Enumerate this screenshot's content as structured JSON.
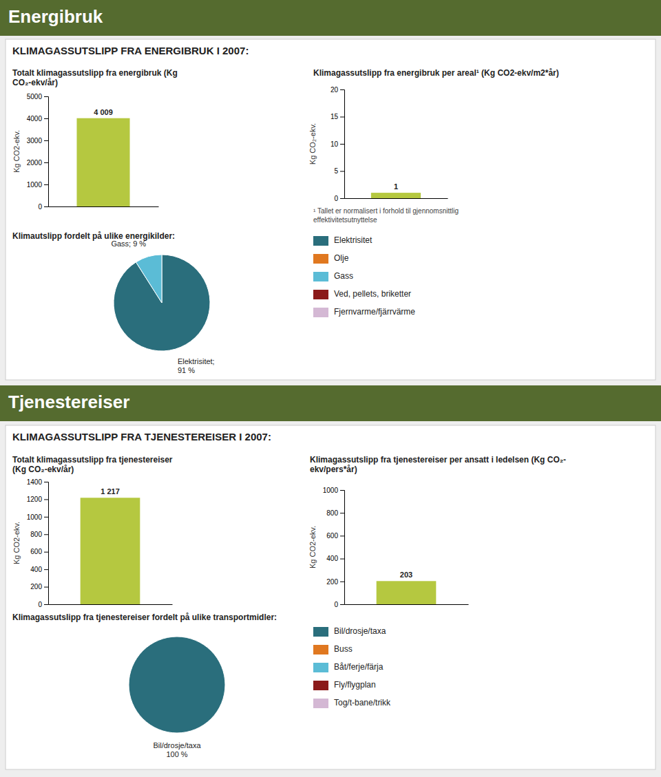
{
  "sections": [
    {
      "header": "Energibruk",
      "title": "KLIMAGASSUTSLIPP FRA ENERGIBRUK I 2007:"
    },
    {
      "header": "Tjenestereiser",
      "title": "KLIMAGASSUTSLIPP FRA TJENESTEREISER I 2007:"
    }
  ],
  "chart_data": [
    {
      "type": "bar",
      "title": "Totalt klimagassutslipp fra energibruk (Kg\nCO₂-ekv/år)",
      "categories": [
        null
      ],
      "values": [
        4009
      ],
      "value_labels": [
        "4 009"
      ],
      "data_labels": true,
      "color": "#b5c840",
      "ylim": [
        0,
        5000
      ],
      "yticks": [
        0,
        1000,
        2000,
        3000,
        4000,
        5000
      ],
      "y_label": "Kg CO2-ekv."
    },
    {
      "type": "bar",
      "title": "Klimagassutslipp fra energibruk per areal¹ (Kg CO2-ekv/m2*år)",
      "categories": [
        null
      ],
      "values": [
        1
      ],
      "data_labels": true,
      "color": "#b5c840",
      "ylim": [
        0,
        20
      ],
      "yticks": [
        0,
        5,
        10,
        15,
        20
      ],
      "y_label": "Kg CO₂-ekv.",
      "annotations": [
        "¹ Tallet er normalisert i forhold til gjennomsnittlig\neffektivitetsutnyttelse"
      ]
    },
    {
      "type": "pie",
      "title": "Klimautslipp fordelt på ulike energikilder:",
      "categories": [
        "Elektrisitet",
        "Olje",
        "Gass",
        "Ved, pellets, briketter",
        "Fjernvarme/fjärrvärme"
      ],
      "values": [
        91,
        null,
        9,
        null,
        null
      ],
      "value_labels": [
        "Elektrisitet;\n91 %",
        null,
        "Gass; 9 %",
        null,
        null
      ],
      "data_labels": true,
      "colors": [
        "#2a6e7c",
        "#e07820",
        "#5bbcd6",
        "#8b1a1a",
        "#d4b8d4"
      ],
      "legend": "right"
    },
    {
      "type": "bar",
      "title": "Totalt klimagassutslipp fra tjenestereiser\n(Kg CO₂-ekv/år)",
      "categories": [
        null
      ],
      "values": [
        1217
      ],
      "value_labels": [
        "1 217"
      ],
      "data_labels": true,
      "color": "#b5c840",
      "ylim": [
        0,
        1400
      ],
      "yticks": [
        0,
        200,
        400,
        600,
        800,
        1000,
        1200,
        1400
      ],
      "y_label": "Kg CO2-ekv."
    },
    {
      "type": "bar",
      "title": "Klimagassutslipp fra tjenestereiser per ansatt i ledelsen (Kg CO₂-\nekv/pers*år)",
      "categories": [
        null
      ],
      "values": [
        203
      ],
      "data_labels": true,
      "color": "#b5c840",
      "ylim": [
        0,
        1000
      ],
      "yticks": [
        0,
        200,
        400,
        600,
        800,
        1000
      ],
      "y_label": "Kg CO2-ekv."
    },
    {
      "type": "pie",
      "title": "Klimagassutslipp fra tjenestereiser fordelt på ulike transportmidler:",
      "categories": [
        "Bil/drosje/taxa",
        "Buss",
        "Båt/ferje/färja",
        "Fly/flygplan",
        "Tog/t-bane/trikk"
      ],
      "values": [
        100,
        null,
        null,
        null,
        null
      ],
      "value_labels": [
        "Bil/drosje/taxa\n100 %",
        null,
        null,
        null,
        null
      ],
      "data_labels": true,
      "colors": [
        "#2a6e7c",
        "#e07820",
        "#5bbcd6",
        "#8b1a1a",
        "#d4b8d4"
      ],
      "legend": "right"
    }
  ]
}
